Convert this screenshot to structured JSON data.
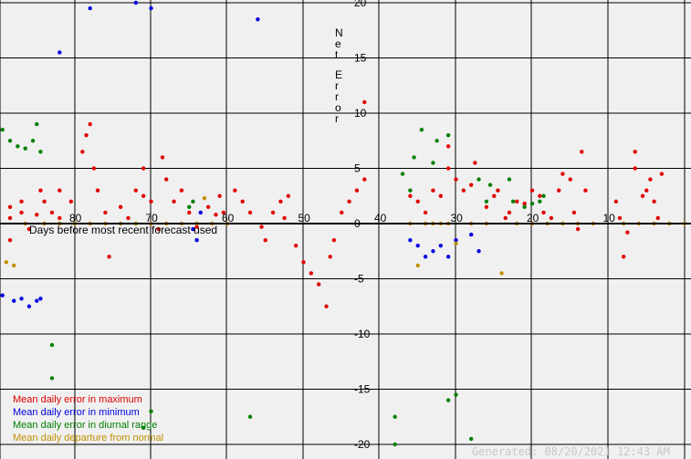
{
  "chart_data": {
    "type": "scatter",
    "ylabel": "Net Error",
    "xlabel": "Days before most recent forecast used",
    "xlim": [
      90,
      0
    ],
    "ylim": [
      -20,
      20
    ],
    "x_ticks": [
      80,
      70,
      60,
      50,
      40,
      30,
      20,
      10
    ],
    "y_ticks": [
      20,
      15,
      10,
      5,
      0,
      -5,
      -10,
      -15,
      -20
    ],
    "grid": true,
    "legend_position": "bottom-left",
    "series": [
      {
        "name": "Mean daily error in maximum",
        "color": "#e00000",
        "points": [
          [
            88.5,
            1.5
          ],
          [
            88.5,
            0.5
          ],
          [
            88.5,
            -1.5
          ],
          [
            87,
            2
          ],
          [
            87,
            1
          ],
          [
            86,
            -0.5
          ],
          [
            85,
            0.8
          ],
          [
            84.5,
            3
          ],
          [
            84,
            2
          ],
          [
            83,
            1
          ],
          [
            82,
            3
          ],
          [
            82,
            0.5
          ],
          [
            80.5,
            2
          ],
          [
            79,
            6.5
          ],
          [
            78.5,
            8
          ],
          [
            78,
            9
          ],
          [
            77.5,
            5
          ],
          [
            77,
            3
          ],
          [
            76,
            1
          ],
          [
            75.5,
            -3
          ],
          [
            74,
            1.5
          ],
          [
            73,
            0.5
          ],
          [
            72,
            3
          ],
          [
            71,
            5
          ],
          [
            71,
            2.5
          ],
          [
            70,
            2
          ],
          [
            69,
            -0.5
          ],
          [
            68.5,
            6
          ],
          [
            68,
            4
          ],
          [
            67,
            2
          ],
          [
            66,
            3
          ],
          [
            65,
            1
          ],
          [
            64,
            -0.3
          ],
          [
            62.5,
            1.5
          ],
          [
            61.5,
            0.8
          ],
          [
            61,
            2.5
          ],
          [
            60.5,
            1
          ],
          [
            59,
            3
          ],
          [
            58,
            2
          ],
          [
            57,
            1
          ],
          [
            55.5,
            -0.3
          ],
          [
            55,
            -1.5
          ],
          [
            54,
            1
          ],
          [
            53,
            2
          ],
          [
            52.5,
            0.5
          ],
          [
            52,
            2.5
          ],
          [
            51,
            -2
          ],
          [
            50,
            -3.5
          ],
          [
            49,
            -4.5
          ],
          [
            48,
            -5.5
          ],
          [
            47,
            -7.5
          ],
          [
            46.5,
            -3
          ],
          [
            46,
            -1.5
          ],
          [
            45,
            1
          ],
          [
            44,
            2
          ],
          [
            43,
            3
          ],
          [
            42,
            4
          ],
          [
            42,
            11
          ],
          [
            36,
            2.5
          ],
          [
            35,
            2
          ],
          [
            34,
            1
          ],
          [
            33,
            3
          ],
          [
            32,
            2.5
          ],
          [
            31,
            5
          ],
          [
            31,
            7
          ],
          [
            30,
            4
          ],
          [
            29,
            3
          ],
          [
            28,
            3.5
          ],
          [
            27.5,
            5.5
          ],
          [
            26,
            1.5
          ],
          [
            25,
            2.5
          ],
          [
            24.5,
            3
          ],
          [
            23.5,
            0.5
          ],
          [
            23,
            1
          ],
          [
            22,
            2
          ],
          [
            21,
            1.8
          ],
          [
            20,
            3
          ],
          [
            19,
            2.5
          ],
          [
            18.5,
            1
          ],
          [
            17.5,
            0.5
          ],
          [
            16.5,
            3
          ],
          [
            16,
            4.5
          ],
          [
            15,
            4
          ],
          [
            14.5,
            1
          ],
          [
            14,
            -0.5
          ],
          [
            13.5,
            6.5
          ],
          [
            13,
            3
          ],
          [
            9,
            2
          ],
          [
            8.5,
            0.5
          ],
          [
            8,
            -3
          ],
          [
            7.5,
            -0.8
          ],
          [
            6.5,
            6.5
          ],
          [
            6.5,
            5
          ],
          [
            5.5,
            2.5
          ],
          [
            5,
            3
          ],
          [
            4.5,
            4
          ],
          [
            4,
            2
          ],
          [
            3.5,
            0.5
          ],
          [
            3,
            4.5
          ]
        ]
      },
      {
        "name": "Mean daily error in minimum",
        "color": "#0000e0",
        "points": [
          [
            89.5,
            -6.5
          ],
          [
            88,
            -7
          ],
          [
            87,
            -6.8
          ],
          [
            86,
            -7.5
          ],
          [
            85,
            -7
          ],
          [
            84.5,
            -6.8
          ],
          [
            82,
            15.5
          ],
          [
            78,
            19.5
          ],
          [
            72,
            20
          ],
          [
            70,
            19.5
          ],
          [
            64.5,
            -0.5
          ],
          [
            64,
            -1.5
          ],
          [
            63.5,
            1
          ],
          [
            56,
            18.5
          ],
          [
            36,
            -1.5
          ],
          [
            35,
            -2
          ],
          [
            34,
            -3
          ],
          [
            33,
            -2.5
          ],
          [
            32,
            -2
          ],
          [
            31,
            -3
          ],
          [
            30,
            -1.5
          ],
          [
            28,
            -1
          ],
          [
            27,
            -2.5
          ]
        ]
      },
      {
        "name": "Mean daily error in diurnal range",
        "color": "#008000",
        "points": [
          [
            89.5,
            8.5
          ],
          [
            88.5,
            7.5
          ],
          [
            87.5,
            7
          ],
          [
            86.5,
            6.8
          ],
          [
            85.5,
            7.5
          ],
          [
            85,
            9
          ],
          [
            84.5,
            6.5
          ],
          [
            83,
            -11
          ],
          [
            83,
            -14
          ],
          [
            71,
            -18.5
          ],
          [
            70,
            -17
          ],
          [
            65,
            1.5
          ],
          [
            64.5,
            2
          ],
          [
            57,
            -17.5
          ],
          [
            38,
            -17.5
          ],
          [
            38,
            -20
          ],
          [
            37,
            4.5
          ],
          [
            36,
            3
          ],
          [
            35.5,
            6
          ],
          [
            34.5,
            8.5
          ],
          [
            33,
            5.5
          ],
          [
            32.5,
            7.5
          ],
          [
            31,
            8
          ],
          [
            31,
            -16
          ],
          [
            30,
            -15.5
          ],
          [
            28,
            -19.5
          ],
          [
            27,
            4
          ],
          [
            26,
            2
          ],
          [
            25.5,
            3.5
          ],
          [
            23,
            4
          ],
          [
            22.5,
            2
          ],
          [
            21,
            1.5
          ],
          [
            20,
            1.8
          ],
          [
            19,
            2
          ],
          [
            18.5,
            2.5
          ]
        ]
      },
      {
        "name": "Mean daily departure from normal",
        "color": "#c09000",
        "points": [
          [
            89,
            -3.5
          ],
          [
            88,
            -3.8
          ],
          [
            86.5,
            0
          ],
          [
            84,
            0
          ],
          [
            82,
            0
          ],
          [
            80,
            0
          ],
          [
            78,
            0
          ],
          [
            76,
            0
          ],
          [
            74,
            0
          ],
          [
            72,
            0
          ],
          [
            70,
            0
          ],
          [
            68,
            0
          ],
          [
            66,
            0
          ],
          [
            64,
            0
          ],
          [
            63,
            2.3
          ],
          [
            62,
            0
          ],
          [
            60,
            0
          ],
          [
            36,
            0
          ],
          [
            35,
            -3.8
          ],
          [
            34,
            0
          ],
          [
            33,
            0
          ],
          [
            32,
            0
          ],
          [
            31,
            0
          ],
          [
            30,
            -1.8
          ],
          [
            28,
            0
          ],
          [
            26,
            0
          ],
          [
            24,
            -4.5
          ],
          [
            22,
            0
          ],
          [
            20,
            0
          ],
          [
            18,
            0
          ],
          [
            16,
            0
          ],
          [
            14,
            0
          ],
          [
            12,
            0
          ],
          [
            8,
            0
          ],
          [
            6,
            0
          ],
          [
            4,
            0
          ],
          [
            2,
            0
          ],
          [
            0,
            0
          ]
        ]
      }
    ]
  },
  "footer": {
    "generated": "Generated: 08/20/2021 12:43 AM"
  }
}
